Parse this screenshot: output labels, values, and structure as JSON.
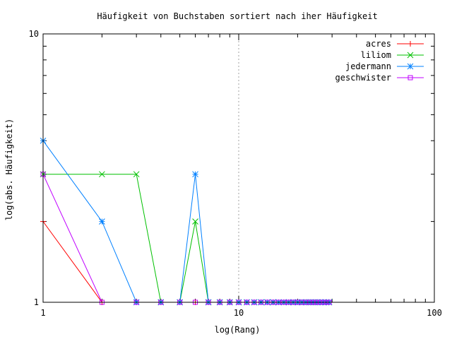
{
  "chart_data": {
    "type": "line",
    "title": "Häufigkeit von Buchstaben sortiert nach iher Häufigkeit",
    "xlabel": "log(Rang)",
    "ylabel": "log(abs. Häufigkeit)",
    "xscale": "log",
    "yscale": "log",
    "xlim": [
      1,
      100
    ],
    "ylim": [
      1,
      10
    ],
    "x_ticks": [
      "1",
      "10",
      "100"
    ],
    "y_ticks": [
      "1",
      "10"
    ],
    "grid": "vertical line at x=10 only",
    "legend_position": "top-right",
    "series": [
      {
        "name": "acres",
        "color": "#ff0000",
        "marker": "plus",
        "x": [
          1,
          2,
          3,
          4,
          5,
          6,
          7,
          8,
          9,
          10,
          11,
          12,
          13,
          14,
          15,
          16,
          17,
          18,
          19,
          20,
          21,
          22,
          23,
          24,
          25,
          26,
          27,
          28,
          29
        ],
        "y": [
          2,
          1,
          1,
          1,
          1,
          1,
          1,
          1,
          1,
          1,
          1,
          1,
          1,
          1,
          1,
          1,
          1,
          1,
          1,
          1,
          1,
          1,
          1,
          1,
          1,
          1,
          1,
          1,
          1
        ]
      },
      {
        "name": "liliom",
        "color": "#00c000",
        "marker": "cross",
        "x": [
          1,
          2,
          3,
          4,
          5,
          6,
          7,
          8,
          9,
          10,
          11,
          12,
          13,
          14,
          15,
          16,
          17,
          18,
          19,
          20,
          21,
          22,
          23,
          24,
          25,
          26,
          27,
          28,
          29
        ],
        "y": [
          3,
          3,
          3,
          1,
          1,
          2,
          1,
          1,
          1,
          1,
          1,
          1,
          1,
          1,
          1,
          1,
          1,
          1,
          1,
          1,
          1,
          1,
          1,
          1,
          1,
          1,
          1,
          1,
          1
        ]
      },
      {
        "name": "jedermann",
        "color": "#0080ff",
        "marker": "star",
        "x": [
          1,
          2,
          3,
          4,
          5,
          6,
          7,
          8,
          9,
          10,
          11,
          12,
          13,
          14,
          15,
          16,
          17,
          18,
          19,
          20,
          21,
          22,
          23,
          24,
          25,
          26,
          27,
          28,
          29
        ],
        "y": [
          4,
          2,
          1,
          1,
          1,
          3,
          1,
          1,
          1,
          1,
          1,
          1,
          1,
          1,
          1,
          1,
          1,
          1,
          1,
          1,
          1,
          1,
          1,
          1,
          1,
          1,
          1,
          1,
          1
        ]
      },
      {
        "name": "geschwister",
        "color": "#c000ff",
        "marker": "square",
        "x": [
          1,
          2,
          3,
          4,
          5,
          6,
          7,
          8,
          9,
          10,
          11,
          12,
          13,
          14,
          15,
          16,
          17,
          18,
          19,
          20,
          21,
          22,
          23,
          24,
          25,
          26,
          27,
          28,
          29
        ],
        "y": [
          3,
          1,
          1,
          1,
          1,
          1,
          1,
          1,
          1,
          1,
          1,
          1,
          1,
          1,
          1,
          1,
          1,
          1,
          1,
          1,
          1,
          1,
          1,
          1,
          1,
          1,
          1,
          1,
          1
        ]
      }
    ]
  }
}
